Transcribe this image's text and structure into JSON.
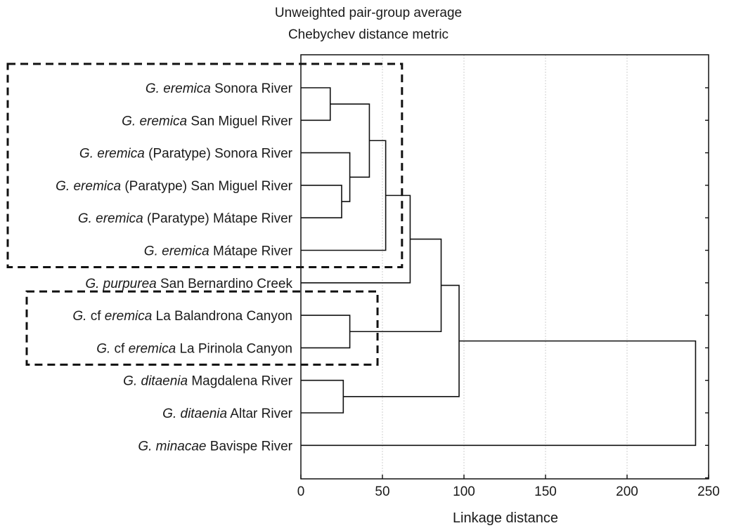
{
  "chart_data": {
    "type": "dendrogram",
    "title": "Unweighted pair-group average",
    "subtitle": "Chebychev distance metric",
    "xlabel": "Linkage distance",
    "xlim": [
      0,
      250
    ],
    "xticks": [
      "0",
      "50",
      "100",
      "150",
      "200",
      "250"
    ],
    "grid": true,
    "leaves": [
      {
        "italic": "G. eremica",
        "rest": " Sonora River"
      },
      {
        "italic": "G. eremica",
        "rest": " San Miguel River"
      },
      {
        "italic": "G. eremica",
        "rest": " (Paratype) Sonora River"
      },
      {
        "italic": "G. eremica",
        "rest": " (Paratype) San Miguel River"
      },
      {
        "italic": "G. eremica",
        "rest": " (Paratype) Mátape River"
      },
      {
        "italic": "G. eremica",
        "rest": " Mátape River"
      },
      {
        "italic": "G. purpurea",
        "rest": " San Bernardino Creek"
      },
      {
        "prefix": "G.",
        "mid": " cf ",
        "italic": "eremica",
        "rest": " La Balandrona Canyon"
      },
      {
        "prefix": "G.",
        "mid": " cf ",
        "italic": "eremica",
        "rest": " La Pirinola Canyon"
      },
      {
        "italic": "G. ditaenia",
        "rest": " Magdalena River"
      },
      {
        "italic": "G. ditaenia",
        "rest": " Altar River"
      },
      {
        "italic": "G. minacae",
        "rest": " Bavispe River"
      }
    ],
    "merges": [
      {
        "id": "m1",
        "a": "L0",
        "b": "L1",
        "height": 18
      },
      {
        "id": "m2",
        "a": "L3",
        "b": "L4",
        "height": 25
      },
      {
        "id": "m3",
        "a": "L2",
        "b": "m2",
        "height": 30
      },
      {
        "id": "m4",
        "a": "m1",
        "b": "m3",
        "height": 42
      },
      {
        "id": "m5",
        "a": "m4",
        "b": "L5",
        "height": 52
      },
      {
        "id": "m6",
        "a": "m5",
        "b": "L6",
        "height": 67
      },
      {
        "id": "m7",
        "a": "L7",
        "b": "L8",
        "height": 30
      },
      {
        "id": "m8",
        "a": "m6",
        "b": "m7",
        "height": 86
      },
      {
        "id": "m9",
        "a": "L9",
        "b": "L10",
        "height": 26
      },
      {
        "id": "m10",
        "a": "m8",
        "b": "m9",
        "height": 97
      },
      {
        "id": "m11",
        "a": "m10",
        "b": "L11",
        "height": 242
      }
    ],
    "group_boxes": [
      {
        "leaves": [
          0,
          5
        ],
        "extends_to": 62
      },
      {
        "leaves": [
          7,
          8
        ],
        "extends_to": 47
      }
    ]
  }
}
